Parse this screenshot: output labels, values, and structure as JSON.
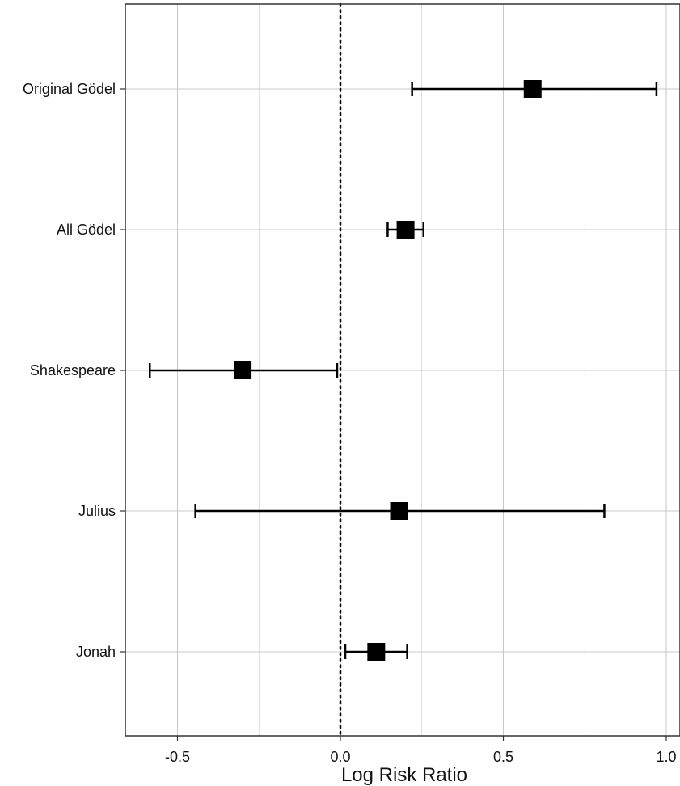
{
  "chart_data": {
    "type": "forest",
    "xlabel": "Log Risk Ratio",
    "ylabel": "",
    "title": "",
    "xlim": [
      -0.66,
      1.05
    ],
    "x_ticks": [
      -0.5,
      0.0,
      0.5,
      1.0
    ],
    "x_tick_labels": [
      "-0.5",
      "0.0",
      "0.5",
      "1.0"
    ],
    "grid": true,
    "reference_line": {
      "x": 0,
      "style": "dotted"
    },
    "rows": [
      {
        "label": "Original Gödel",
        "estimate": 0.59,
        "lower": 0.22,
        "upper": 0.97
      },
      {
        "label": "All Gödel",
        "estimate": 0.2,
        "lower": 0.145,
        "upper": 0.255
      },
      {
        "label": "Shakespeare",
        "estimate": -0.3,
        "lower": -0.585,
        "upper": -0.01
      },
      {
        "label": "Julius",
        "estimate": 0.18,
        "lower": -0.445,
        "upper": 0.81
      },
      {
        "label": "Jonah",
        "estimate": 0.11,
        "lower": 0.015,
        "upper": 0.205
      }
    ],
    "colors": {
      "marker": "#000000",
      "grid": "#c8c8c8",
      "panel_border": "#333333"
    }
  }
}
